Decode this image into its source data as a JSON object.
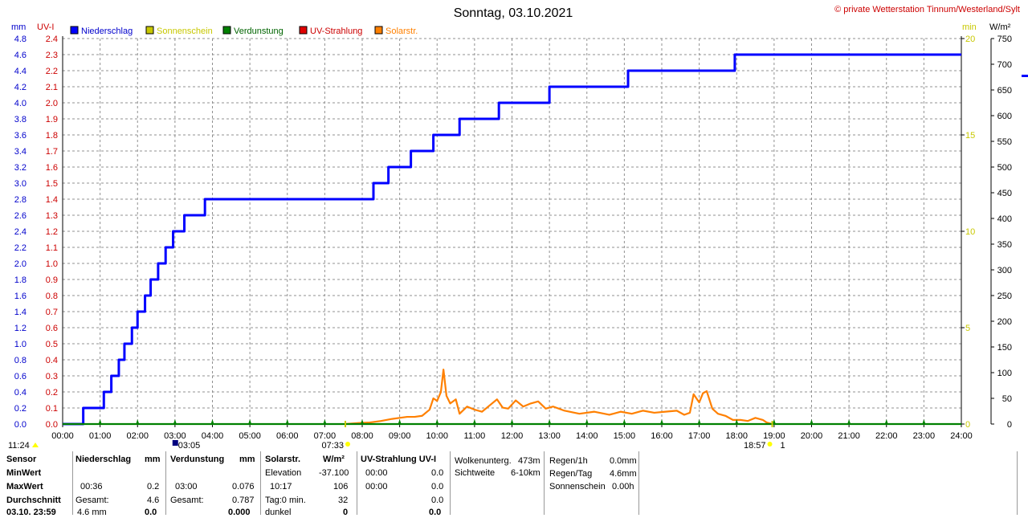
{
  "header": {
    "title": "Sonntag, 03.10.2021",
    "copyright": "© private Wetterstation Tinnum/Westerland/Sylt"
  },
  "axis_units": {
    "left_outer": "mm",
    "left_inner": "UV-I",
    "right_inner": "min",
    "right_outer": "W/m²"
  },
  "legend": [
    {
      "label": "Niederschlag",
      "color": "#0000ff",
      "text_color": "#0000cc"
    },
    {
      "label": "Sonnenschein",
      "color": "#c8c800",
      "text_color": "#c8c800"
    },
    {
      "label": "Verdunstung",
      "color": "#008000",
      "text_color": "#006400"
    },
    {
      "label": "UV-Strahlung",
      "color": "#e00000",
      "text_color": "#cc0000"
    },
    {
      "label": "Solarstr.",
      "color": "#ff8000",
      "text_color": "#ff8000"
    }
  ],
  "markers": {
    "sunrise": "07:33",
    "sunset": "18:57",
    "moon": "03:05",
    "moon_extra": "1",
    "daylength": "11:24"
  },
  "chart_data": {
    "type": "line",
    "xlabel": "",
    "xlim": [
      0,
      24
    ],
    "x_ticks": [
      "00:00",
      "01:00",
      "02:00",
      "03:00",
      "04:00",
      "05:00",
      "06:00",
      "07:00",
      "08:00",
      "09:00",
      "10:00",
      "11:00",
      "12:00",
      "13:00",
      "14:00",
      "15:00",
      "16:00",
      "17:00",
      "18:00",
      "19:00",
      "20:00",
      "21:00",
      "22:00",
      "23:00",
      "24:00"
    ],
    "axes": {
      "mm": {
        "range": [
          0,
          4.8
        ],
        "ticks": [
          "0.0",
          "0.2",
          "0.4",
          "0.6",
          "0.8",
          "1.0",
          "1.2",
          "1.4",
          "1.6",
          "1.8",
          "2.0",
          "2.2",
          "2.4",
          "2.6",
          "2.8",
          "3.0",
          "3.2",
          "3.4",
          "3.6",
          "3.8",
          "4.0",
          "4.2",
          "4.4",
          "4.6",
          "4.8"
        ],
        "color": "#0000cc"
      },
      "uv": {
        "range": [
          0,
          2.4
        ],
        "ticks": [
          "0.0",
          "0.1",
          "0.2",
          "0.3",
          "0.4",
          "0.5",
          "0.6",
          "0.7",
          "0.8",
          "0.9",
          "1.0",
          "1.1",
          "1.2",
          "1.3",
          "1.4",
          "1.5",
          "1.6",
          "1.7",
          "1.8",
          "1.9",
          "2.0",
          "2.1",
          "2.2",
          "2.3",
          "2.4"
        ],
        "color": "#cc0000"
      },
      "min": {
        "range": [
          0,
          20
        ],
        "ticks": [
          "0",
          "5",
          "10",
          "15",
          "20"
        ],
        "color": "#c8c800"
      },
      "wm2": {
        "range": [
          0,
          750
        ],
        "ticks": [
          "0",
          "50",
          "100",
          "150",
          "200",
          "250",
          "300",
          "350",
          "400",
          "450",
          "500",
          "550",
          "600",
          "650",
          "700",
          "750"
        ],
        "color": "#000000"
      }
    },
    "series": [
      {
        "name": "Niederschlag",
        "axis": "mm",
        "color": "#0000ff",
        "step": true,
        "x": [
          0,
          0.55,
          1.1,
          1.3,
          1.5,
          1.65,
          1.85,
          2.0,
          2.2,
          2.35,
          2.55,
          2.75,
          2.95,
          3.25,
          3.8,
          8.3,
          8.7,
          9.3,
          9.9,
          10.6,
          11.65,
          13.0,
          15.1,
          17.95,
          24
        ],
        "values": [
          0,
          0.2,
          0.4,
          0.6,
          0.8,
          1.0,
          1.2,
          1.4,
          1.6,
          1.8,
          2.0,
          2.2,
          2.4,
          2.6,
          2.8,
          3.0,
          3.2,
          3.4,
          3.6,
          3.8,
          4.0,
          4.2,
          4.4,
          4.6,
          4.6
        ]
      },
      {
        "name": "Solarstr.",
        "axis": "wm2",
        "color": "#ff8000",
        "step": false,
        "x": [
          7.55,
          7.9,
          8.2,
          8.5,
          8.8,
          9.0,
          9.2,
          9.4,
          9.6,
          9.8,
          9.9,
          10.0,
          10.1,
          10.17,
          10.25,
          10.35,
          10.5,
          10.6,
          10.8,
          11.0,
          11.2,
          11.4,
          11.6,
          11.75,
          11.9,
          12.1,
          12.3,
          12.5,
          12.7,
          12.9,
          13.1,
          13.4,
          13.8,
          14.2,
          14.6,
          14.9,
          15.2,
          15.5,
          15.8,
          16.1,
          16.4,
          16.6,
          16.75,
          16.85,
          17.0,
          17.1,
          17.2,
          17.35,
          17.5,
          17.7,
          17.9,
          18.1,
          18.3,
          18.5,
          18.7,
          18.8,
          18.95
        ],
        "values": [
          0,
          2,
          3,
          6,
          10,
          12,
          14,
          14,
          16,
          28,
          50,
          45,
          62,
          106,
          55,
          40,
          48,
          20,
          34,
          28,
          24,
          36,
          48,
          32,
          30,
          46,
          34,
          40,
          44,
          30,
          34,
          26,
          20,
          24,
          18,
          24,
          20,
          26,
          22,
          24,
          26,
          18,
          22,
          58,
          42,
          60,
          64,
          30,
          20,
          16,
          8,
          8,
          6,
          12,
          8,
          3,
          0
        ]
      },
      {
        "name": "Verdunstung",
        "axis": "mm",
        "color": "#008000",
        "step": false,
        "x": [
          0,
          24
        ],
        "values": [
          0,
          0
        ]
      }
    ]
  },
  "stats": {
    "rows": [
      "Sensor",
      "MinWert",
      "MaxWert",
      "Durchschnitt",
      "03.10. 23:59"
    ],
    "niederschlag": {
      "head": "Niederschlag",
      "unit": "mm",
      "max_time": "00:36",
      "max_val": "0.2",
      "gesamt_label": "Gesamt:",
      "gesamt_val": "4.6",
      "last_label": "4.6 mm",
      "last_val": "0.0"
    },
    "verdunstung": {
      "head": "Verdunstung",
      "unit": "mm",
      "max_time": "03:00",
      "max_val": "0.076",
      "gesamt_label": "Gesamt:",
      "gesamt_val": "0.787",
      "last_val": "0.000"
    },
    "solar": {
      "head": "Solarstr.",
      "unit": "W/m²",
      "elev_label": "Elevation",
      "elev_val": "-37.100",
      "max_time": "10:17",
      "max_val": "106",
      "tag_label": "Tag:0 min.",
      "tag_val": "32",
      "dunkel_label": "dunkel",
      "dunkel_val": "0"
    },
    "uv": {
      "head": "UV-Strahlung UV-I",
      "min_time": "00:00",
      "min_val": "0.0",
      "max_time": "00:00",
      "max_val": "0.0",
      "avg_val": "0.0",
      "last_val": "0.0"
    },
    "wolken": {
      "label1": "Wolkenunterg.",
      "val1": "473m",
      "label2": "Sichtweite",
      "val2": "6-10km"
    },
    "regen": {
      "label1": "Regen/1h",
      "val1": "0.0mm",
      "label2": "Regen/Tag",
      "val2": "4.6mm",
      "label3": "Sonnenschein",
      "val3": "0.00h"
    }
  }
}
